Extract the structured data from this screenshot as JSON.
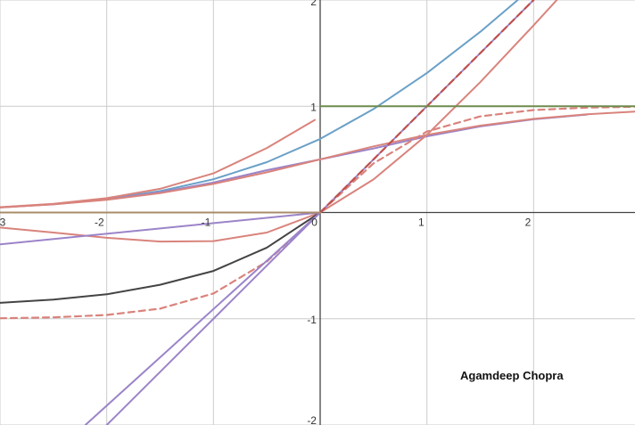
{
  "credit": "Agamdeep Chopra",
  "chart_data": {
    "type": "line",
    "xlim": [
      -3,
      2.95
    ],
    "ylim": [
      -2,
      2
    ],
    "grid": true,
    "x_ticks": [
      {
        "value": -3,
        "label": "-3"
      },
      {
        "value": -2,
        "label": "-2"
      },
      {
        "value": -1,
        "label": "-1"
      },
      {
        "value": 0,
        "label": "0"
      },
      {
        "value": 1,
        "label": "1"
      },
      {
        "value": 2,
        "label": "2"
      }
    ],
    "y_ticks": [
      {
        "value": 2,
        "label": "2"
      },
      {
        "value": 1,
        "label": "1"
      },
      {
        "value": -1,
        "label": "-1"
      },
      {
        "value": -2,
        "label": "-2"
      }
    ],
    "series": [
      {
        "color": "#6aa0c7",
        "dash": false,
        "x": [
          -3,
          -2.5,
          -2,
          -1.5,
          -1,
          -0.5,
          0,
          0.5,
          1,
          1.5,
          2,
          2.5
        ],
        "y": [
          0.049,
          0.079,
          0.127,
          0.201,
          0.313,
          0.474,
          0.693,
          0.974,
          1.313,
          1.701,
          2.127,
          2.579
        ]
      },
      {
        "color": "#9b84c8",
        "dash": false,
        "x": [
          -3,
          -2.5,
          -2,
          -1.5,
          -1,
          -0.5,
          0,
          0.5,
          1,
          1.5,
          2,
          2.5
        ],
        "y": [
          0.048,
          0.078,
          0.123,
          0.19,
          0.283,
          0.398,
          0.5,
          0.602,
          0.717,
          0.81,
          0.877,
          0.922
        ]
      },
      {
        "color": "#d9837c",
        "dash": false,
        "x": [
          -3,
          -2.5,
          -2,
          -1.5,
          -1,
          -0.5,
          0,
          0.5,
          1,
          1.5,
          2,
          2.5,
          2.95
        ],
        "y": [
          0.047,
          0.076,
          0.119,
          0.182,
          0.269,
          0.378,
          0.5,
          0.622,
          0.731,
          0.818,
          0.881,
          0.924,
          0.95
        ]
      },
      {
        "color": "#d9837c",
        "dash": false,
        "x": [
          -3,
          -2.5,
          -2,
          -1.5,
          -1,
          -0.5,
          -0.05
        ],
        "y": [
          0.05,
          0.082,
          0.135,
          0.223,
          0.368,
          0.607,
          0.871
        ]
      },
      {
        "color": "#d9837c",
        "dash": false,
        "x": [
          -3,
          -2.5,
          -2,
          -1.5,
          -1,
          -0.5,
          0,
          0.5,
          1,
          1.5,
          2,
          2.5
        ],
        "y": [
          -0.142,
          -0.189,
          -0.238,
          -0.273,
          -0.269,
          -0.189,
          0,
          0.311,
          0.731,
          1.227,
          1.762,
          2.31
        ]
      },
      {
        "color": "#d9837c",
        "dash": true,
        "x": [
          -3,
          -2.5,
          -2,
          -1.5,
          -1,
          -0.5,
          0,
          0.5,
          1,
          1.5,
          2,
          2.5,
          2.95
        ],
        "y": [
          -0.995,
          -0.987,
          -0.964,
          -0.905,
          -0.762,
          -0.462,
          0,
          0.462,
          0.762,
          0.905,
          0.964,
          0.987,
          0.995
        ]
      },
      {
        "color": "#444444",
        "dash": false,
        "x": [
          -3,
          -2.5,
          -2,
          -1.5,
          -1,
          -0.5,
          0
        ],
        "y": [
          -0.85,
          -0.82,
          -0.77,
          -0.68,
          -0.55,
          -0.33,
          0
        ]
      },
      {
        "color": "#9b84c8",
        "dash": false,
        "x": [
          -3,
          0,
          2
        ],
        "y": [
          -0.3,
          0,
          2
        ]
      },
      {
        "color": "#9b84c8",
        "dash": false,
        "x": [
          -2.2,
          0
        ],
        "y": [
          -2,
          0
        ]
      },
      {
        "color": "#9b84c8",
        "dash": false,
        "x": [
          -2,
          0
        ],
        "y": [
          -2,
          0
        ]
      },
      {
        "color": "#c0504d",
        "dash": true,
        "x": [
          0,
          2
        ],
        "y": [
          0,
          2
        ]
      },
      {
        "color": "#6e8b4e",
        "dash": false,
        "x": [
          0,
          2.95
        ],
        "y": [
          1,
          1
        ]
      },
      {
        "color": "#a88c6a",
        "dash": false,
        "x": [
          -3,
          0
        ],
        "y": [
          0,
          0
        ]
      }
    ]
  }
}
